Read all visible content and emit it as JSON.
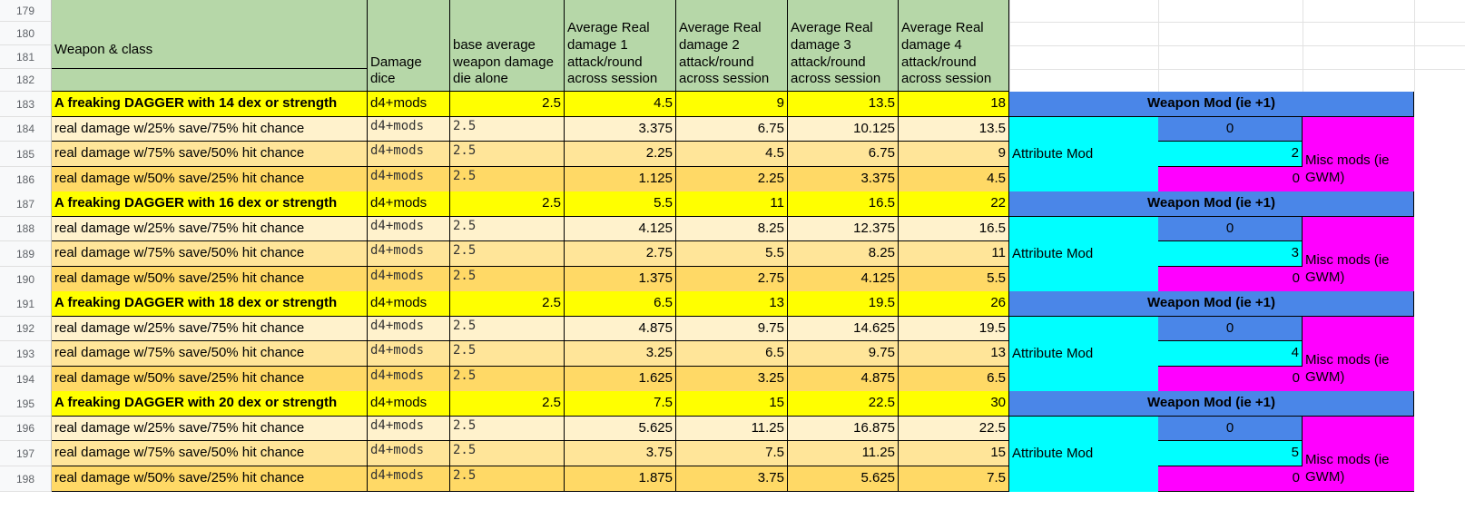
{
  "row_numbers": [
    "179",
    "180",
    "181",
    "182",
    "183",
    "184",
    "185",
    "186",
    "187",
    "188",
    "189",
    "190",
    "191",
    "192",
    "193",
    "194",
    "195",
    "196",
    "197",
    "198"
  ],
  "headers": {
    "weapon_class": "Weapon & class",
    "damage_dice": "Damage dice",
    "base_average": "base average weapon damage die alone",
    "avg1": "Average Real damage 1 attack/round across session",
    "avg2": "Average Real damage 2 attack/round across session",
    "avg3": "Average Real damage 3 attack/round across session",
    "avg4": "Average Real damage 4 attack/round across session"
  },
  "groups": [
    {
      "title": "A freaking DAGGER with 14 dex or strength",
      "dice": "d4+mods",
      "base": "2.5",
      "avg": [
        "4.5",
        "9",
        "13.5",
        "18"
      ],
      "rows": [
        {
          "label": "real damage w/25% save/75% hit chance",
          "dice": "d4+mods",
          "base": "2.5",
          "avg": [
            "3.375",
            "6.75",
            "10.125",
            "13.5"
          ]
        },
        {
          "label": "real damage w/75% save/50% hit chance",
          "dice": "d4+mods",
          "base": "2.5",
          "avg": [
            "2.25",
            "4.5",
            "6.75",
            "9"
          ]
        },
        {
          "label": "real damage w/50% save/25% hit chance",
          "dice": "d4+mods",
          "base": "2.5",
          "avg": [
            "1.125",
            "2.25",
            "3.375",
            "4.5"
          ]
        }
      ],
      "weapon_mod_label": "Weapon Mod (ie +1)",
      "weapon_mod": "0",
      "attribute_mod_label": "Attribute Mod",
      "attribute_mod": "2",
      "misc_mod": "0",
      "misc_label": "Misc mods (ie GWM)"
    },
    {
      "title": "A freaking DAGGER with 16 dex or strength",
      "dice": "d4+mods",
      "base": "2.5",
      "avg": [
        "5.5",
        "11",
        "16.5",
        "22"
      ],
      "rows": [
        {
          "label": "real damage w/25% save/75% hit chance",
          "dice": "d4+mods",
          "base": "2.5",
          "avg": [
            "4.125",
            "8.25",
            "12.375",
            "16.5"
          ]
        },
        {
          "label": "real damage w/75% save/50% hit chance",
          "dice": "d4+mods",
          "base": "2.5",
          "avg": [
            "2.75",
            "5.5",
            "8.25",
            "11"
          ]
        },
        {
          "label": "real damage w/50% save/25% hit chance",
          "dice": "d4+mods",
          "base": "2.5",
          "avg": [
            "1.375",
            "2.75",
            "4.125",
            "5.5"
          ]
        }
      ],
      "weapon_mod_label": "Weapon Mod (ie +1)",
      "weapon_mod": "0",
      "attribute_mod_label": "Attribute Mod",
      "attribute_mod": "3",
      "misc_mod": "0",
      "misc_label": "Misc mods (ie GWM)"
    },
    {
      "title": "A freaking DAGGER with 18 dex or strength",
      "dice": "d4+mods",
      "base": "2.5",
      "avg": [
        "6.5",
        "13",
        "19.5",
        "26"
      ],
      "rows": [
        {
          "label": "real damage w/25% save/75% hit chance",
          "dice": "d4+mods",
          "base": "2.5",
          "avg": [
            "4.875",
            "9.75",
            "14.625",
            "19.5"
          ]
        },
        {
          "label": "real damage w/75% save/50% hit chance",
          "dice": "d4+mods",
          "base": "2.5",
          "avg": [
            "3.25",
            "6.5",
            "9.75",
            "13"
          ]
        },
        {
          "label": "real damage w/50% save/25% hit chance",
          "dice": "d4+mods",
          "base": "2.5",
          "avg": [
            "1.625",
            "3.25",
            "4.875",
            "6.5"
          ]
        }
      ],
      "weapon_mod_label": "Weapon Mod (ie +1)",
      "weapon_mod": "0",
      "attribute_mod_label": "Attribute Mod",
      "attribute_mod": "4",
      "misc_mod": "0",
      "misc_label": "Misc mods (ie GWM)"
    },
    {
      "title": "A freaking DAGGER with 20 dex or strength",
      "dice": "d4+mods",
      "base": "2.5",
      "avg": [
        "7.5",
        "15",
        "22.5",
        "30"
      ],
      "rows": [
        {
          "label": "real damage w/25% save/75% hit chance",
          "dice": "d4+mods",
          "base": "2.5",
          "avg": [
            "5.625",
            "11.25",
            "16.875",
            "22.5"
          ]
        },
        {
          "label": "real damage w/75% save/50% hit chance",
          "dice": "d4+mods",
          "base": "2.5",
          "avg": [
            "3.75",
            "7.5",
            "11.25",
            "15"
          ]
        },
        {
          "label": "real damage w/50% save/25% hit chance",
          "dice": "d4+mods",
          "base": "2.5",
          "avg": [
            "1.875",
            "3.75",
            "5.625",
            "7.5"
          ]
        }
      ],
      "weapon_mod_label": "Weapon Mod (ie +1)",
      "weapon_mod": "0",
      "attribute_mod_label": "Attribute Mod",
      "attribute_mod": "5",
      "misc_mod": "0",
      "misc_label": "Misc mods (ie GWM)"
    }
  ],
  "colors": {
    "header_green": "#b6d7a8",
    "title_yellow": "#ffff00",
    "row_light": "#fff2cc",
    "row_mid": "#ffe599",
    "row_dark": "#ffd966",
    "weapon_mod_blue": "#4a86e8",
    "cyan": "#00ffff",
    "magenta": "#ff00ff"
  }
}
